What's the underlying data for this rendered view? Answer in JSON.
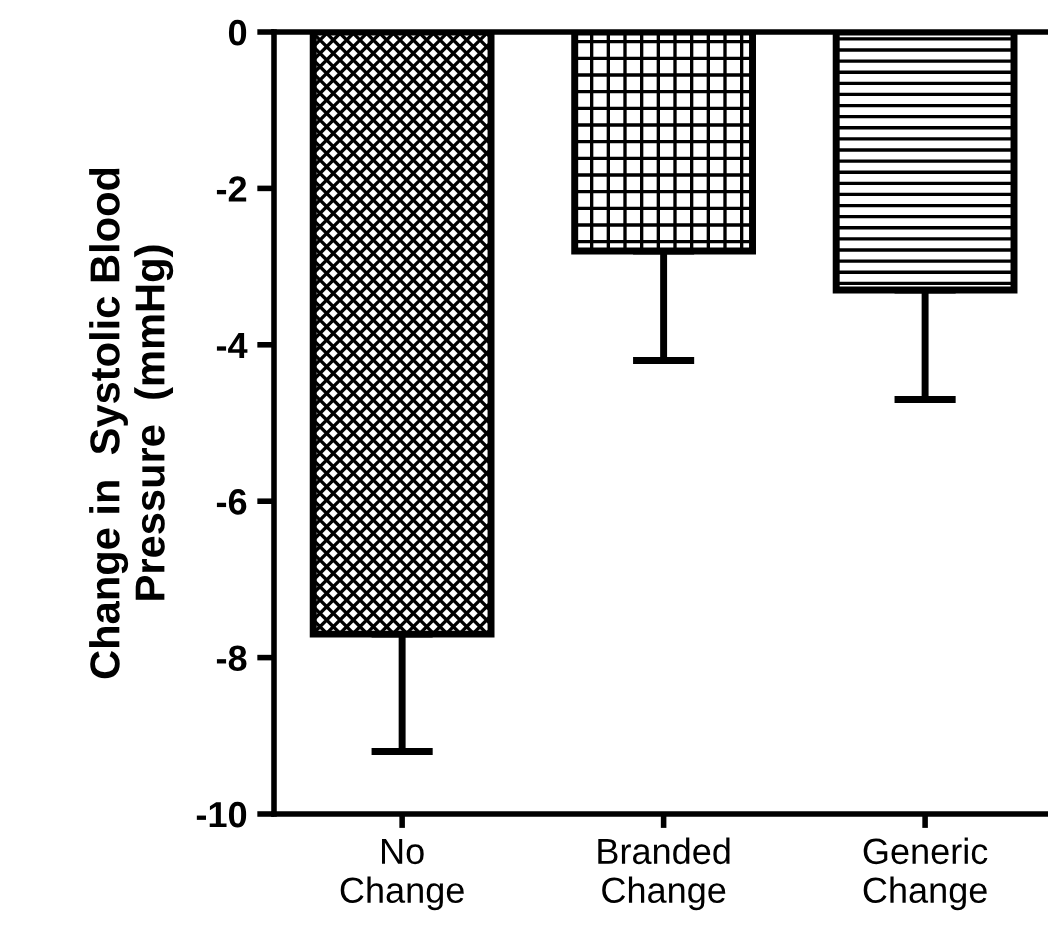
{
  "chart_data": {
    "type": "bar",
    "ylabel": "Change in  Systolic Blood\nPressure  (mmHg)",
    "categories": [
      "No\nChange",
      "Branded\nChange",
      "Generic\nChange"
    ],
    "values": [
      -7.7,
      -2.8,
      -3.3
    ],
    "errors": [
      [
        -9.2,
        -7.7
      ],
      [
        -4.2,
        -2.8
      ],
      [
        -4.7,
        -3.3
      ]
    ],
    "colors": [
      "#000000",
      "#000000",
      "#000000"
    ],
    "ylim": [
      -10,
      0
    ],
    "yticks": [
      0,
      -2,
      -4,
      -6,
      -8,
      -10
    ],
    "grid": false,
    "legend": false
  }
}
